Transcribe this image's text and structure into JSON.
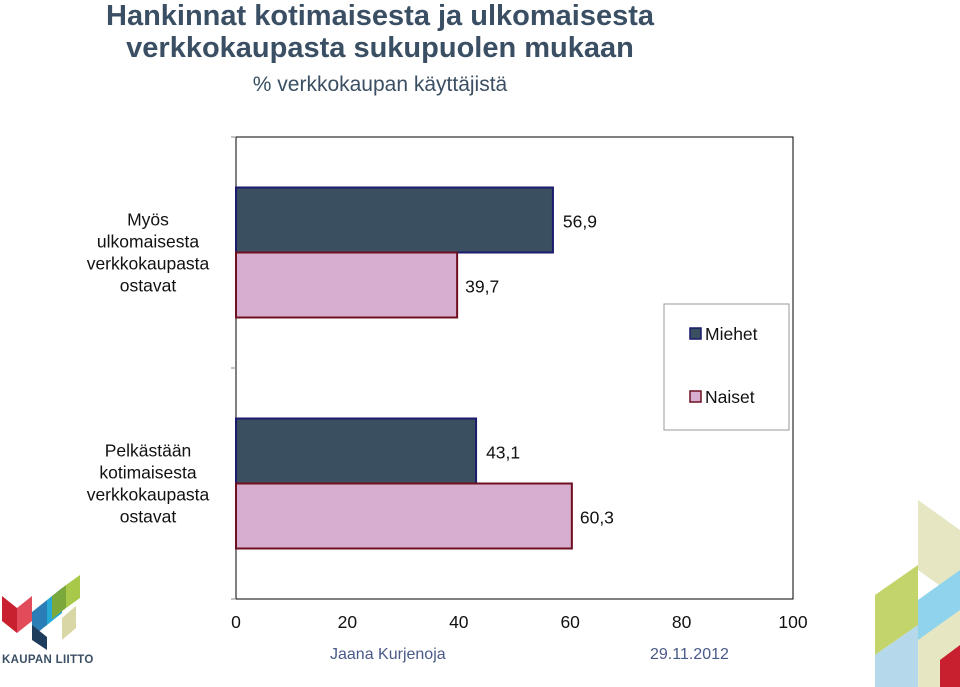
{
  "header": {
    "title_line1": "Hankinnat kotimaisesta ja ulkomaisesta",
    "title_line2": "verkkokaupasta sukupuolen mukaan",
    "subtitle": "% verkkokaupan käyttäjistä"
  },
  "chart_data": {
    "type": "bar",
    "orientation": "horizontal",
    "categories": [
      [
        "Myös",
        "ulkomaisesta",
        "verkkokaupasta",
        "ostavat"
      ],
      [
        "Pelkästään",
        "kotimaisesta",
        "verkkokaupasta",
        "ostavat"
      ]
    ],
    "series": [
      {
        "name": "Miehet",
        "color": "#3a4f5f",
        "values": [
          56.9,
          43.1
        ],
        "labels": [
          "56,9",
          "43,1"
        ]
      },
      {
        "name": "Naiset",
        "color": "#d8aed0",
        "values": [
          39.7,
          60.3
        ],
        "labels": [
          "39,7",
          "60,3"
        ]
      }
    ],
    "xlim": [
      0,
      100
    ],
    "xticks": [
      "0",
      "20",
      "40",
      "60",
      "80",
      "100"
    ],
    "legend_position": "right",
    "grid": false
  },
  "footer": {
    "author": "Jaana Kurjenoja",
    "date": "29.11.2012",
    "logo_text": "KAUPAN LIITTO"
  }
}
